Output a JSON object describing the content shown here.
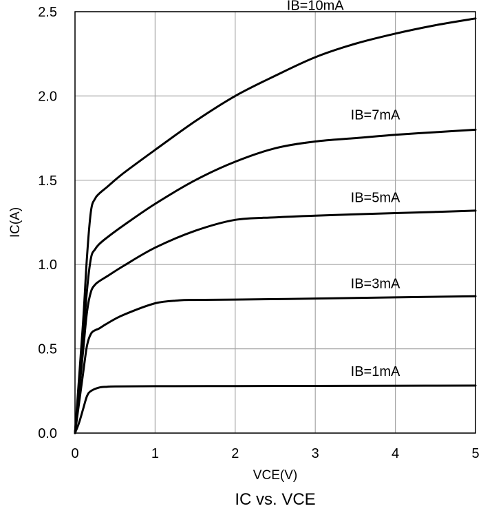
{
  "chart_data": {
    "type": "line",
    "title": "IC vs. VCE",
    "xlabel": "VCE(V)",
    "ylabel": "IC(A)",
    "xlim": [
      0,
      5
    ],
    "ylim": [
      0,
      2.5
    ],
    "xticks": [
      0,
      1,
      2,
      3,
      4,
      5
    ],
    "xtick_labels": [
      "0",
      "1",
      "2",
      "3",
      "4",
      "5"
    ],
    "yticks": [
      0,
      0.5,
      1.0,
      1.5,
      2.0,
      2.5
    ],
    "ytick_labels": [
      "0.0",
      "0.5",
      "1.0",
      "1.5",
      "2.0",
      "2.5"
    ],
    "grid": true,
    "legend": "none (curves labeled inline)",
    "series": [
      {
        "name": "IB=10mA",
        "x": [
          0,
          0.1,
          0.15,
          0.2,
          0.25,
          0.3,
          0.4,
          0.6,
          1.0,
          1.5,
          2.0,
          2.5,
          3.0,
          3.5,
          4.0,
          4.5,
          5.0
        ],
        "y": [
          0,
          0.65,
          1.05,
          1.32,
          1.39,
          1.42,
          1.46,
          1.54,
          1.68,
          1.85,
          2.0,
          2.12,
          2.23,
          2.31,
          2.37,
          2.42,
          2.46
        ]
      },
      {
        "name": "IB=7mA",
        "x": [
          0,
          0.1,
          0.15,
          0.2,
          0.25,
          0.3,
          0.4,
          0.6,
          1.0,
          1.5,
          2.0,
          2.5,
          3.0,
          3.5,
          4.0,
          4.5,
          5.0
        ],
        "y": [
          0,
          0.55,
          0.85,
          1.04,
          1.09,
          1.12,
          1.16,
          1.23,
          1.36,
          1.5,
          1.61,
          1.69,
          1.73,
          1.75,
          1.77,
          1.785,
          1.8
        ]
      },
      {
        "name": "IB=5mA",
        "x": [
          0,
          0.1,
          0.15,
          0.2,
          0.25,
          0.3,
          0.4,
          0.6,
          1.0,
          1.5,
          2.0,
          2.5,
          3.0,
          3.5,
          4.0,
          4.5,
          5.0
        ],
        "y": [
          0,
          0.48,
          0.72,
          0.84,
          0.88,
          0.9,
          0.93,
          0.99,
          1.1,
          1.2,
          1.265,
          1.28,
          1.29,
          1.298,
          1.305,
          1.312,
          1.32
        ]
      },
      {
        "name": "IB=3mA",
        "x": [
          0,
          0.1,
          0.15,
          0.2,
          0.25,
          0.3,
          0.4,
          0.6,
          1.0,
          1.3,
          1.5,
          2.0,
          3.0,
          4.0,
          5.0
        ],
        "y": [
          0,
          0.35,
          0.52,
          0.59,
          0.61,
          0.62,
          0.65,
          0.7,
          0.77,
          0.787,
          0.79,
          0.792,
          0.798,
          0.805,
          0.812
        ]
      },
      {
        "name": "IB=1mA",
        "x": [
          0,
          0.05,
          0.1,
          0.15,
          0.2,
          0.3,
          0.4,
          0.5,
          1.0,
          2.0,
          3.0,
          4.0,
          5.0
        ],
        "y": [
          0,
          0.06,
          0.14,
          0.22,
          0.25,
          0.27,
          0.275,
          0.277,
          0.278,
          0.279,
          0.28,
          0.281,
          0.282
        ]
      }
    ]
  }
}
